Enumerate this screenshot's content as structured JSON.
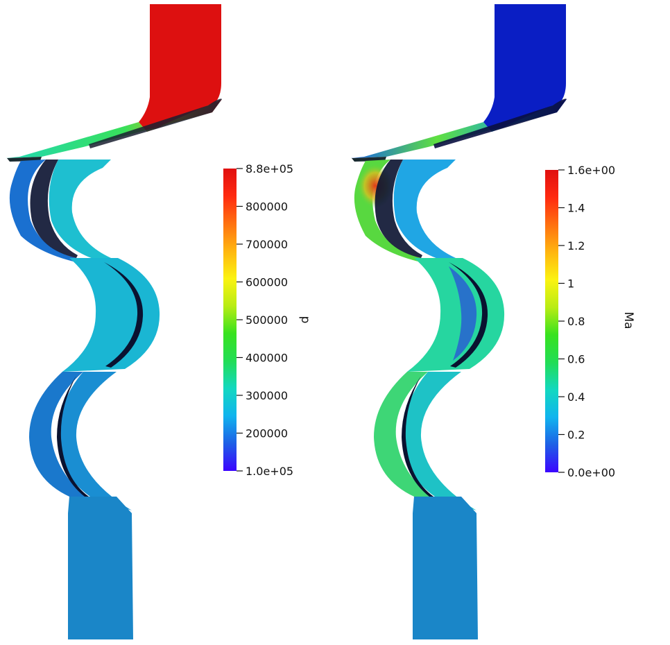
{
  "colormap": {
    "stops": [
      "#3b04ff",
      "#1e5fe6",
      "#10b4ee",
      "#12d8c0",
      "#22dd55",
      "#38e21e",
      "#b8ec14",
      "#fbf311",
      "#ffb60f",
      "#ff7110",
      "#ff2a10",
      "#e00f0f"
    ]
  },
  "plots": [
    {
      "field": "p",
      "range": [
        100000,
        880000
      ],
      "ticks": [
        "8.8e+05",
        "800000",
        "700000",
        "600000",
        "500000",
        "400000",
        "300000",
        "200000",
        "1.0e+05"
      ],
      "colors": {
        "inlet": "#dd1010",
        "shoulder": "#eab20a",
        "duct_left": "#22d8b4",
        "duct_mid": "#38e05a",
        "blade_row_1_a": "#1a70d0",
        "blade_row_1_b": "#1ebfd0",
        "blade_row_2": "#1ab6d3",
        "blade_row_3_a": "#1a78cc",
        "blade_row_3_b": "#1a8ed2",
        "outlet": "#1a86c8"
      }
    },
    {
      "field": "Ma",
      "range": [
        0,
        1.6
      ],
      "ticks": [
        "1.6e+00",
        "1.4",
        "1.2",
        "1",
        "0.8",
        "0.6",
        "0.4",
        "0.2",
        "0.0e+00"
      ],
      "colors": {
        "inlet": "#0a1ec4",
        "shoulder": "#14a0dc",
        "duct_left": "#1460e8",
        "duct_mid": "#5fe040",
        "blade_row_1_a": "#58d840",
        "blade_row_1_b": "#20a6e4",
        "blade_row_2": "#26d6a0",
        "blade_row_3_a": "#3ed676",
        "blade_row_3_b": "#1ec2c6",
        "outlet": "#1a86c8"
      }
    }
  ]
}
